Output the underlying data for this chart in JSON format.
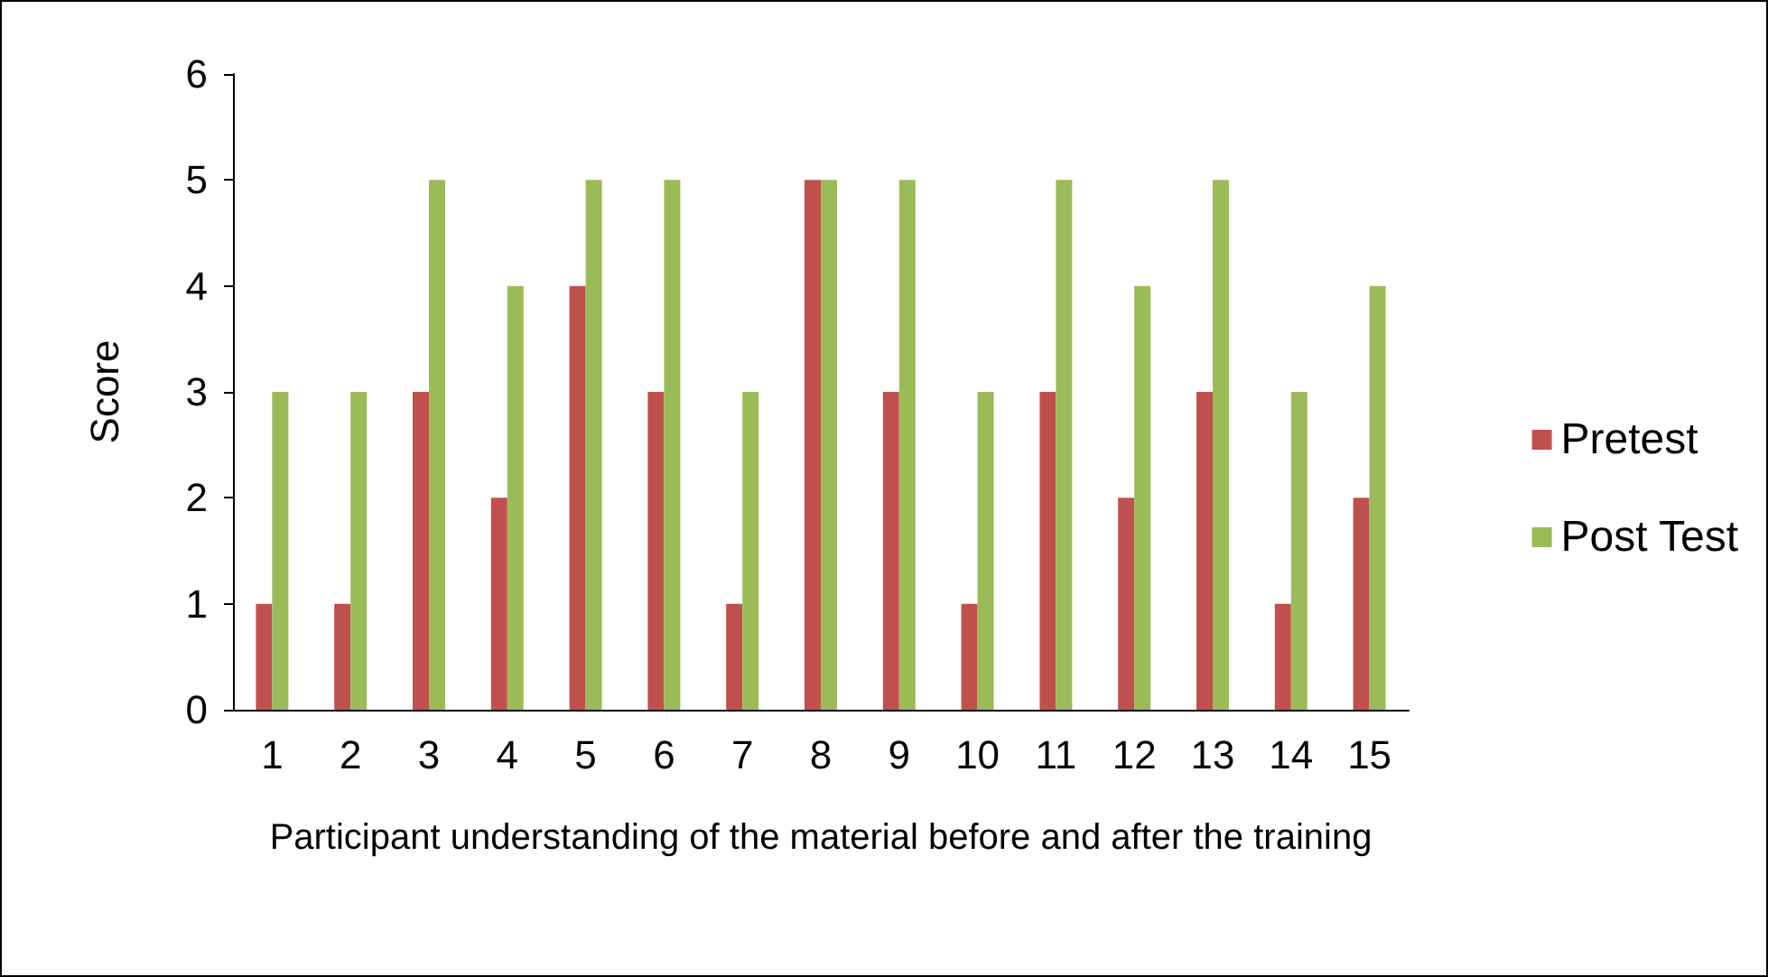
{
  "chart_data": {
    "type": "bar",
    "xlabel": "Participant understanding of the material before and after the training",
    "ylabel": "Score",
    "categories": [
      "1",
      "2",
      "3",
      "4",
      "5",
      "6",
      "7",
      "8",
      "9",
      "10",
      "11",
      "12",
      "13",
      "14",
      "15"
    ],
    "series": [
      {
        "name": "Pretest",
        "color": "#c0504d",
        "values": [
          1,
          1,
          3,
          2,
          4,
          3,
          1,
          5,
          3,
          1,
          3,
          2,
          3,
          1,
          2
        ]
      },
      {
        "name": "Post Test",
        "color": "#9bbb59",
        "values": [
          3,
          3,
          5,
          4,
          5,
          5,
          3,
          5,
          5,
          3,
          5,
          4,
          5,
          3,
          4
        ]
      }
    ],
    "ylim": [
      0,
      6
    ],
    "yticks": [
      0,
      1,
      2,
      3,
      4,
      5,
      6
    ],
    "grid": false,
    "legend": "right"
  }
}
